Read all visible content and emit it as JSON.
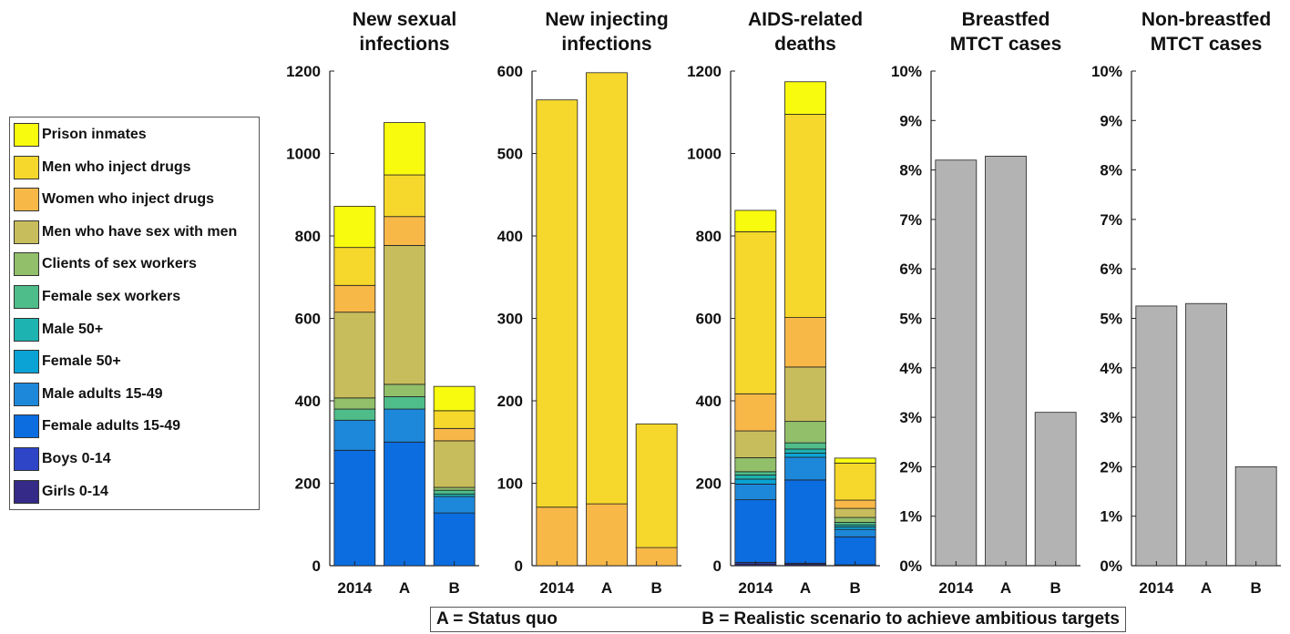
{
  "legend": {
    "items": [
      {
        "label": "Prison inmates",
        "color": "#F9FB0E"
      },
      {
        "label": "Men who inject drugs",
        "color": "#F5D82B"
      },
      {
        "label": "Women who inject drugs",
        "color": "#F8B848"
      },
      {
        "label": "Men who have sex with men",
        "color": "#C8BD5C"
      },
      {
        "label": "Clients of sex workers",
        "color": "#91BF6A"
      },
      {
        "label": "Female sex workers",
        "color": "#4EBD8A"
      },
      {
        "label": "Male 50+",
        "color": "#1DB3B0"
      },
      {
        "label": "Female 50+",
        "color": "#0BA3D6"
      },
      {
        "label": "Male adults 15-49",
        "color": "#1D88DA"
      },
      {
        "label": "Female adults 15-49",
        "color": "#0B6DE0"
      },
      {
        "label": "Boys 0-14",
        "color": "#2E45C8"
      },
      {
        "label": "Girls 0-14",
        "color": "#352A87"
      }
    ]
  },
  "note": {
    "a": "A = Status quo",
    "b": "B = Realistic scenario to achieve ambitious targets"
  },
  "chart_data": [
    {
      "type": "bar",
      "stacked": true,
      "title": [
        "New sexual",
        "infections"
      ],
      "categories": [
        "2014",
        "A",
        "B"
      ],
      "ylim": [
        0,
        1200
      ],
      "yticks": [
        "0",
        "200",
        "400",
        "600",
        "800",
        "1000",
        "1200"
      ],
      "series": [
        {
          "name": "Girls 0-14",
          "values": [
            0,
            0,
            0
          ]
        },
        {
          "name": "Boys 0-14",
          "values": [
            0,
            0,
            0
          ]
        },
        {
          "name": "Female adults 15-49",
          "values": [
            280,
            300,
            128
          ]
        },
        {
          "name": "Male adults 15-49",
          "values": [
            73,
            80,
            40
          ]
        },
        {
          "name": "Female 50+",
          "values": [
            0,
            0,
            0
          ]
        },
        {
          "name": "Male 50+",
          "values": [
            0,
            0,
            6
          ]
        },
        {
          "name": "Female sex workers",
          "values": [
            27,
            30,
            9
          ]
        },
        {
          "name": "Clients of sex workers",
          "values": [
            27,
            30,
            7
          ]
        },
        {
          "name": "Men who have sex with men",
          "values": [
            208,
            337,
            113
          ]
        },
        {
          "name": "Women who inject drugs",
          "values": [
            65,
            70,
            30
          ]
        },
        {
          "name": "Men who inject drugs",
          "values": [
            92,
            101,
            43
          ]
        },
        {
          "name": "Prison inmates",
          "values": [
            100,
            127,
            59
          ]
        }
      ]
    },
    {
      "type": "bar",
      "stacked": true,
      "title": [
        "New injecting",
        "infections"
      ],
      "categories": [
        "2014",
        "A",
        "B"
      ],
      "ylim": [
        0,
        600
      ],
      "yticks": [
        "0",
        "100",
        "200",
        "300",
        "400",
        "500",
        "600"
      ],
      "series": [
        {
          "name": "Women who inject drugs",
          "values": [
            71,
            75,
            22
          ]
        },
        {
          "name": "Men who inject drugs",
          "values": [
            494,
            523,
            150
          ]
        }
      ]
    },
    {
      "type": "bar",
      "stacked": true,
      "title": [
        "AIDS-related",
        "deaths"
      ],
      "categories": [
        "2014",
        "A",
        "B"
      ],
      "ylim": [
        0,
        1200
      ],
      "yticks": [
        "0",
        "200",
        "400",
        "600",
        "800",
        "1000",
        "1200"
      ],
      "series": [
        {
          "name": "Girls 0-14",
          "values": [
            4,
            3,
            1
          ]
        },
        {
          "name": "Boys 0-14",
          "values": [
            4,
            3,
            1
          ]
        },
        {
          "name": "Female adults 15-49",
          "values": [
            152,
            202,
            68
          ]
        },
        {
          "name": "Male adults 15-49",
          "values": [
            38,
            55,
            18
          ]
        },
        {
          "name": "Female 50+",
          "values": [
            12,
            10,
            6
          ]
        },
        {
          "name": "Male 50+",
          "values": [
            10,
            10,
            5
          ]
        },
        {
          "name": "Female sex workers",
          "values": [
            8,
            15,
            6
          ]
        },
        {
          "name": "Clients of sex workers",
          "values": [
            34,
            52,
            12
          ]
        },
        {
          "name": "Men who have sex with men",
          "values": [
            65,
            132,
            22
          ]
        },
        {
          "name": "Women who inject drugs",
          "values": [
            90,
            120,
            20
          ]
        },
        {
          "name": "Men who inject drugs",
          "values": [
            393,
            493,
            90
          ]
        },
        {
          "name": "Prison inmates",
          "values": [
            52,
            79,
            12
          ]
        }
      ]
    },
    {
      "type": "bar",
      "title": [
        "Breastfed",
        "MTCT cases"
      ],
      "categories": [
        "2014",
        "A",
        "B"
      ],
      "ylim": [
        0,
        10
      ],
      "yticks": [
        "0%",
        "1%",
        "2%",
        "3%",
        "4%",
        "5%",
        "6%",
        "7%",
        "8%",
        "9%",
        "10%"
      ],
      "values": [
        8.2,
        8.28,
        3.1
      ],
      "color": "#B3B3B3"
    },
    {
      "type": "bar",
      "title": [
        "Non-breastfed",
        "MTCT cases"
      ],
      "categories": [
        "2014",
        "A",
        "B"
      ],
      "ylim": [
        0,
        10
      ],
      "yticks": [
        "0%",
        "1%",
        "2%",
        "3%",
        "4%",
        "5%",
        "6%",
        "7%",
        "8%",
        "9%",
        "10%"
      ],
      "values": [
        5.25,
        5.3,
        2.0
      ],
      "color": "#B3B3B3"
    }
  ]
}
